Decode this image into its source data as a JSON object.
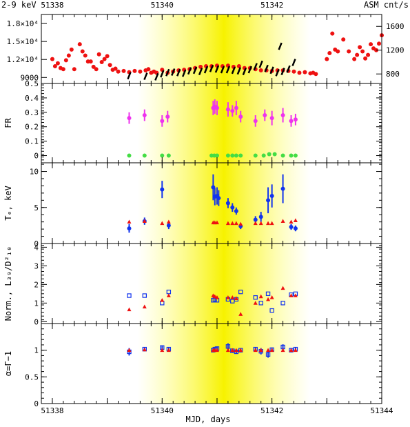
{
  "chart_data": [
    {
      "type": "scatter",
      "panel": "flux",
      "top_left_label": "2-9 keV",
      "top_right_label": "ASM cnt/s",
      "xlim": [
        51337.8,
        51344.0
      ],
      "ylim": [
        8000,
        19500
      ],
      "yticks": [
        9000,
        12000,
        15000,
        18000
      ],
      "ytick_labels": [
        "9000",
        "1.2×10⁴",
        "1.5×10⁴",
        "1.8×10⁴"
      ],
      "right_ylim": [
        640,
        1800
      ],
      "right_yticks": [
        800,
        1200,
        1600
      ],
      "right_ytick_labels": [
        "800",
        "1200",
        "1600"
      ],
      "top_xticks": [
        51338,
        51340,
        51342
      ],
      "top_xtick_labels": [
        "51338",
        "51340",
        "51342"
      ],
      "colors": {
        "asm": "#ee1111",
        "pca": "#000000"
      },
      "series": [
        {
          "marker": "circle",
          "color": "#ee1111",
          "axis": "right",
          "x": [
            51338.0,
            51338.05,
            51338.1,
            51338.15,
            51338.2,
            51338.25,
            51338.3,
            51338.35,
            51338.4,
            51338.5,
            51338.55,
            51338.6,
            51338.65,
            51338.7,
            51338.75,
            51338.8,
            51338.85,
            51338.9,
            51338.95,
            51339.0,
            51339.05,
            51339.1,
            51339.15,
            51339.2,
            51339.3,
            51339.4,
            51339.5,
            51339.6,
            51339.7,
            51339.75,
            51339.8,
            51339.85,
            51339.9,
            51340.0,
            51340.1,
            51340.2,
            51340.3,
            51340.4,
            51340.5,
            51340.6,
            51340.7,
            51340.8,
            51340.9,
            51341.0,
            51341.1,
            51341.2,
            51341.3,
            51341.4,
            51341.5,
            51341.6,
            51341.7,
            51341.8,
            51341.9,
            51342.0,
            51342.1,
            51342.2,
            51342.3,
            51342.4,
            51342.5,
            51342.6,
            51342.7,
            51342.75,
            51342.8,
            51343.0,
            51343.05,
            51343.1,
            51343.15,
            51343.2,
            51343.3,
            51343.4,
            51343.5,
            51343.55,
            51343.6,
            51343.65,
            51343.7,
            51343.75,
            51343.8,
            51343.85,
            51343.9,
            51343.95,
            51344.0
          ],
          "y": [
            1050,
            930,
            980,
            900,
            880,
            1030,
            1110,
            1210,
            880,
            1300,
            1180,
            1110,
            1010,
            1010,
            920,
            880,
            1130,
            1000,
            1050,
            1100,
            950,
            870,
            890,
            840,
            850,
            830,
            850,
            840,
            860,
            880,
            820,
            840,
            820,
            870,
            820,
            840,
            860,
            870,
            880,
            900,
            920,
            930,
            930,
            940,
            930,
            940,
            920,
            930,
            900,
            900,
            880,
            860,
            860,
            850,
            860,
            860,
            850,
            840,
            820,
            830,
            810,
            820,
            800,
            1050,
            1150,
            1480,
            1210,
            1180,
            1380,
            1180,
            1050,
            1120,
            1250,
            1180,
            1060,
            1120,
            1300,
            1230,
            1200,
            1310,
            1450
          ]
        },
        {
          "marker": "streak",
          "color": "#000000",
          "axis": "left",
          "x": [
            51339.4,
            51339.7,
            51339.9,
            51340.0,
            51340.1,
            51340.2,
            51340.3,
            51340.4,
            51340.5,
            51340.6,
            51340.7,
            51340.8,
            51340.9,
            51341.0,
            51341.1,
            51341.2,
            51341.3,
            51341.4,
            51341.5,
            51341.6,
            51341.7,
            51341.8,
            51341.9,
            51342.0,
            51342.1,
            51342.15,
            51342.2,
            51342.3,
            51342.4
          ],
          "y": [
            9300,
            9200,
            9100,
            9600,
            9800,
            9900,
            9800,
            9700,
            10100,
            10200,
            10000,
            10300,
            10500,
            10400,
            10300,
            10300,
            10200,
            10100,
            10000,
            10300,
            10800,
            11200,
            10500,
            10200,
            9800,
            14200,
            10000,
            10400,
            11500
          ]
        }
      ]
    },
    {
      "type": "scatter",
      "panel": "FR",
      "ylabel": "FR",
      "xlim": [
        51337.8,
        51344.0
      ],
      "ylim": [
        -0.05,
        0.5
      ],
      "yticks": [
        0,
        0.1,
        0.2,
        0.3,
        0.4,
        0.5
      ],
      "ytick_labels": [
        "0",
        "0.1",
        "0.2",
        "0.3",
        "0.4",
        "0.5"
      ],
      "series": [
        {
          "marker": "circle",
          "color": "#ee33ee",
          "x": [
            51339.4,
            51339.68,
            51340.0,
            51340.1,
            51340.93,
            51340.96,
            51341.0,
            51341.2,
            51341.28,
            51341.35,
            51341.43,
            51341.7,
            51341.87,
            51342.0,
            51342.2,
            51342.35,
            51342.43
          ],
          "y": [
            0.26,
            0.28,
            0.24,
            0.27,
            0.33,
            0.34,
            0.33,
            0.32,
            0.31,
            0.33,
            0.27,
            0.24,
            0.28,
            0.26,
            0.28,
            0.24,
            0.25
          ],
          "err": [
            0.04,
            0.04,
            0.04,
            0.04,
            0.05,
            0.05,
            0.05,
            0.05,
            0.04,
            0.05,
            0.04,
            0.04,
            0.04,
            0.05,
            0.05,
            0.04,
            0.04
          ]
        },
        {
          "marker": "circle",
          "color": "#44dd44",
          "x": [
            51339.4,
            51339.68,
            51340.0,
            51340.12,
            51340.9,
            51340.95,
            51341.0,
            51341.2,
            51341.28,
            51341.35,
            51341.43,
            51341.7,
            51341.85,
            51341.95,
            51342.05,
            51342.2,
            51342.35,
            51342.43
          ],
          "y": [
            0,
            0,
            0,
            0,
            0,
            0,
            0,
            0,
            0,
            0,
            0,
            0,
            0,
            0.01,
            0.01,
            0,
            0,
            0
          ]
        }
      ]
    },
    {
      "type": "scatter",
      "panel": "Te",
      "ylabel": "Tₑ, keV",
      "xlim": [
        51337.8,
        51344.0
      ],
      "ylim": [
        0,
        11.2
      ],
      "yticks": [
        0,
        5,
        10
      ],
      "ytick_labels": [
        "0",
        "5",
        "10"
      ],
      "series": [
        {
          "marker": "circle",
          "color": "#1133ee",
          "x": [
            51339.4,
            51339.68,
            51340.0,
            51340.12,
            51340.93,
            51340.96,
            51341.0,
            51341.03,
            51341.2,
            51341.28,
            51341.35,
            51341.43,
            51341.7,
            51341.8,
            51341.93,
            51342.0,
            51342.2,
            51342.35,
            51342.43
          ],
          "y": [
            2.1,
            3.1,
            7.5,
            2.5,
            7.8,
            6.5,
            6.6,
            6.3,
            5.6,
            5.0,
            4.5,
            2.4,
            3.3,
            3.7,
            6.0,
            6.6,
            7.6,
            2.3,
            2.1
          ],
          "err": [
            0.6,
            0.5,
            1.2,
            0.5,
            1.8,
            1.2,
            1.2,
            1.1,
            0.7,
            0.6,
            0.5,
            0.4,
            0.5,
            0.7,
            1.8,
            1.6,
            2.0,
            0.4,
            0.4
          ]
        },
        {
          "marker": "triangle",
          "color": "#ee1111",
          "x": [
            51339.4,
            51339.68,
            51340.0,
            51340.12,
            51340.93,
            51340.96,
            51341.0,
            51341.2,
            51341.28,
            51341.35,
            51341.43,
            51341.7,
            51341.8,
            51341.93,
            51342.0,
            51342.2,
            51342.35,
            51342.43
          ],
          "y": [
            3.0,
            3.1,
            2.8,
            3.0,
            2.9,
            2.9,
            2.9,
            2.8,
            2.8,
            2.8,
            2.7,
            2.8,
            2.8,
            2.8,
            2.8,
            3.1,
            3.0,
            3.2
          ]
        }
      ]
    },
    {
      "type": "scatter",
      "panel": "norm",
      "ylabel": "Norm., L₃₉/D²₁₀",
      "xlim": [
        51337.8,
        51344.0
      ],
      "ylim": [
        -0.1,
        4.2
      ],
      "yticks": [
        0,
        1,
        2,
        3,
        4
      ],
      "ytick_labels": [
        "0",
        "1",
        "2",
        "3",
        "4"
      ],
      "series": [
        {
          "marker": "square",
          "color": "#1133ee",
          "x": [
            51339.4,
            51339.68,
            51340.0,
            51340.12,
            51340.93,
            51340.96,
            51341.0,
            51341.2,
            51341.28,
            51341.35,
            51341.43,
            51341.7,
            51341.8,
            51341.93,
            51342.0,
            51342.2,
            51342.35,
            51342.43
          ],
          "y": [
            1.4,
            1.4,
            1.0,
            1.6,
            1.15,
            1.2,
            1.15,
            1.2,
            1.1,
            1.2,
            1.6,
            1.3,
            1.0,
            1.5,
            0.6,
            1.0,
            1.45,
            1.5
          ]
        },
        {
          "marker": "triangle",
          "color": "#ee1111",
          "x": [
            51339.4,
            51339.68,
            51340.0,
            51340.12,
            51340.93,
            51340.96,
            51341.0,
            51341.2,
            51341.28,
            51341.35,
            51341.43,
            51341.7,
            51341.8,
            51341.93,
            51342.0,
            51342.2,
            51342.35,
            51342.43
          ],
          "y": [
            0.65,
            0.8,
            1.15,
            1.4,
            1.4,
            1.35,
            1.3,
            1.3,
            1.3,
            1.25,
            0.4,
            1.0,
            1.35,
            1.2,
            1.3,
            1.8,
            1.4,
            1.4
          ]
        }
      ]
    },
    {
      "type": "scatter",
      "panel": "alpha",
      "ylabel": "α=Γ−1",
      "xlabel": "MJD, days",
      "xlim": [
        51337.8,
        51344.0
      ],
      "ylim": [
        0,
        1.5
      ],
      "yticks": [
        0,
        0.5,
        1
      ],
      "ytick_labels": [
        "0",
        "0.5",
        "1"
      ],
      "xticks": [
        51338,
        51340,
        51342,
        51344
      ],
      "xtick_labels": [
        "51338",
        "51340",
        "51342",
        "51344"
      ],
      "series": [
        {
          "marker": "square",
          "color": "#1133ee",
          "x": [
            51339.4,
            51339.68,
            51340.0,
            51340.12,
            51340.93,
            51340.96,
            51341.0,
            51341.2,
            51341.28,
            51341.35,
            51341.43,
            51341.7,
            51341.8,
            51341.93,
            51342.0,
            51342.2,
            51342.35,
            51342.43
          ],
          "y": [
            0.97,
            1.02,
            1.05,
            1.02,
            1.0,
            1.02,
            1.03,
            1.07,
            0.99,
            0.97,
            1.0,
            1.02,
            0.98,
            0.92,
            1.01,
            1.06,
            1.0,
            1.02
          ],
          "err": [
            0.07,
            0.04,
            0.04,
            0.04,
            0.04,
            0.04,
            0.04,
            0.06,
            0.04,
            0.04,
            0.04,
            0.04,
            0.06,
            0.06,
            0.04,
            0.05,
            0.04,
            0.04
          ]
        },
        {
          "marker": "triangle",
          "color": "#ee1111",
          "x": [
            51339.4,
            51339.68,
            51340.0,
            51340.12,
            51340.93,
            51340.96,
            51341.0,
            51341.2,
            51341.28,
            51341.35,
            51341.43,
            51341.7,
            51341.8,
            51341.93,
            51342.0,
            51342.2,
            51342.35,
            51342.43
          ],
          "y": [
            1.0,
            1.01,
            1.0,
            1.0,
            1.0,
            1.0,
            1.0,
            1.0,
            1.0,
            1.0,
            1.0,
            1.0,
            1.0,
            1.0,
            1.0,
            1.0,
            1.0,
            1.0
          ]
        }
      ]
    }
  ]
}
